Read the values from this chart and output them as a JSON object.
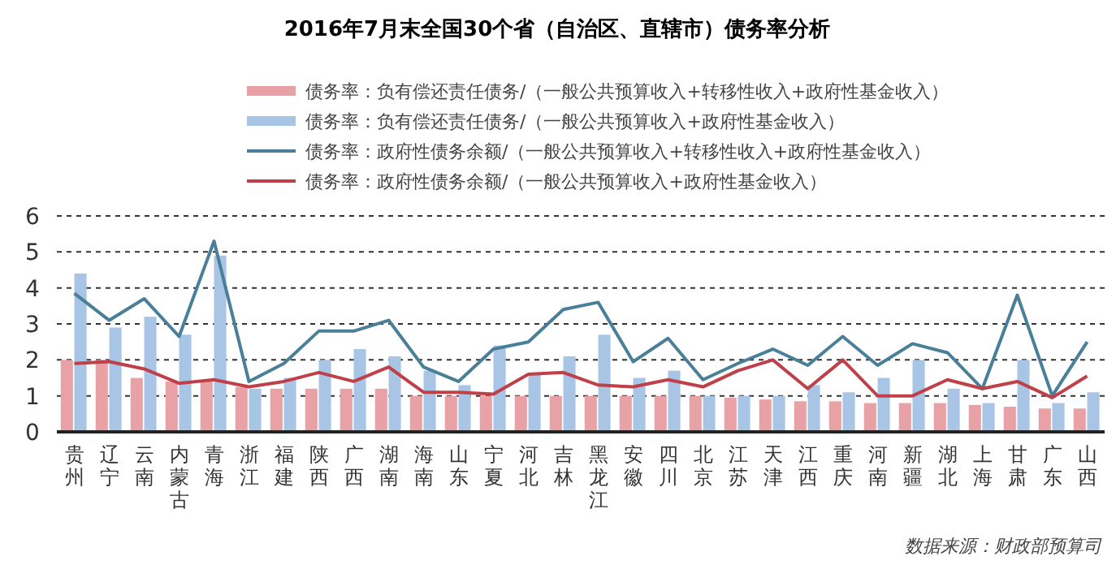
{
  "chart_data": {
    "type": "bar",
    "title": "2016年7月末全国30个省（自治区、直辖市）债务率分析",
    "categories": [
      "贵州",
      "辽宁",
      "云南",
      "内蒙古",
      "青海",
      "浙江",
      "福建",
      "陕西",
      "广西",
      "湖南",
      "海南",
      "山东",
      "宁夏",
      "河北",
      "吉林",
      "黑龙江",
      "安徽",
      "四川",
      "北京",
      "江苏",
      "天津",
      "江西",
      "重庆",
      "河南",
      "新疆",
      "湖北",
      "上海",
      "甘肃",
      "广东",
      "山西"
    ],
    "series": [
      {
        "name": "债务率：负有偿还责任债务/（一般公共预算收入+转移性收入+政府性基金收入）",
        "color": "#e8a2a6",
        "values": [
          2.0,
          2.0,
          1.5,
          1.4,
          1.4,
          1.25,
          1.2,
          1.2,
          1.2,
          1.2,
          1.0,
          1.0,
          1.0,
          1.0,
          1.0,
          1.0,
          1.0,
          1.0,
          1.0,
          0.95,
          0.9,
          0.85,
          0.85,
          0.8,
          0.8,
          0.8,
          0.75,
          0.7,
          0.65,
          0.65
        ]
      },
      {
        "name": "债务率：负有偿还责任债务/（一般公共预算收入+政府性基金收入）",
        "color": "#a9c5e6",
        "values": [
          4.4,
          2.9,
          3.2,
          2.7,
          4.9,
          1.2,
          1.5,
          2.0,
          2.3,
          2.1,
          1.7,
          1.3,
          2.4,
          1.6,
          2.1,
          2.7,
          1.5,
          1.7,
          1.0,
          1.0,
          1.0,
          1.3,
          1.1,
          1.5,
          2.0,
          1.2,
          0.8,
          2.0,
          0.8,
          1.1
        ]
      },
      {
        "name": "债务率：政府性债务余额/（一般公共预算收入+转移性收入+政府性基金收入）",
        "type": "line",
        "color": "#4a7f9a",
        "values": [
          3.85,
          3.1,
          3.7,
          2.65,
          5.3,
          1.4,
          1.9,
          2.8,
          2.8,
          3.1,
          1.8,
          1.4,
          2.3,
          2.5,
          3.4,
          3.6,
          1.95,
          2.6,
          1.45,
          1.9,
          2.3,
          1.85,
          2.65,
          1.85,
          2.45,
          2.2,
          1.2,
          3.8,
          1.0,
          2.5
        ]
      },
      {
        "name": "债务率：政府性债务余额/（一般公共预算收入+政府性基金收入）",
        "type": "line",
        "color": "#c0404a",
        "values": [
          1.9,
          1.95,
          1.75,
          1.35,
          1.45,
          1.25,
          1.4,
          1.65,
          1.4,
          1.8,
          1.1,
          1.1,
          1.05,
          1.6,
          1.65,
          1.3,
          1.25,
          1.45,
          1.25,
          1.7,
          2.0,
          1.2,
          2.0,
          1.0,
          1.0,
          1.45,
          1.2,
          1.4,
          0.95,
          1.55
        ]
      }
    ],
    "ylim": [
      0,
      6
    ],
    "yticks": [
      0,
      1,
      2,
      3,
      4,
      5,
      6
    ],
    "grid": "y",
    "legend": "top",
    "annotations": [
      "数据来源：财政部预算司"
    ]
  }
}
